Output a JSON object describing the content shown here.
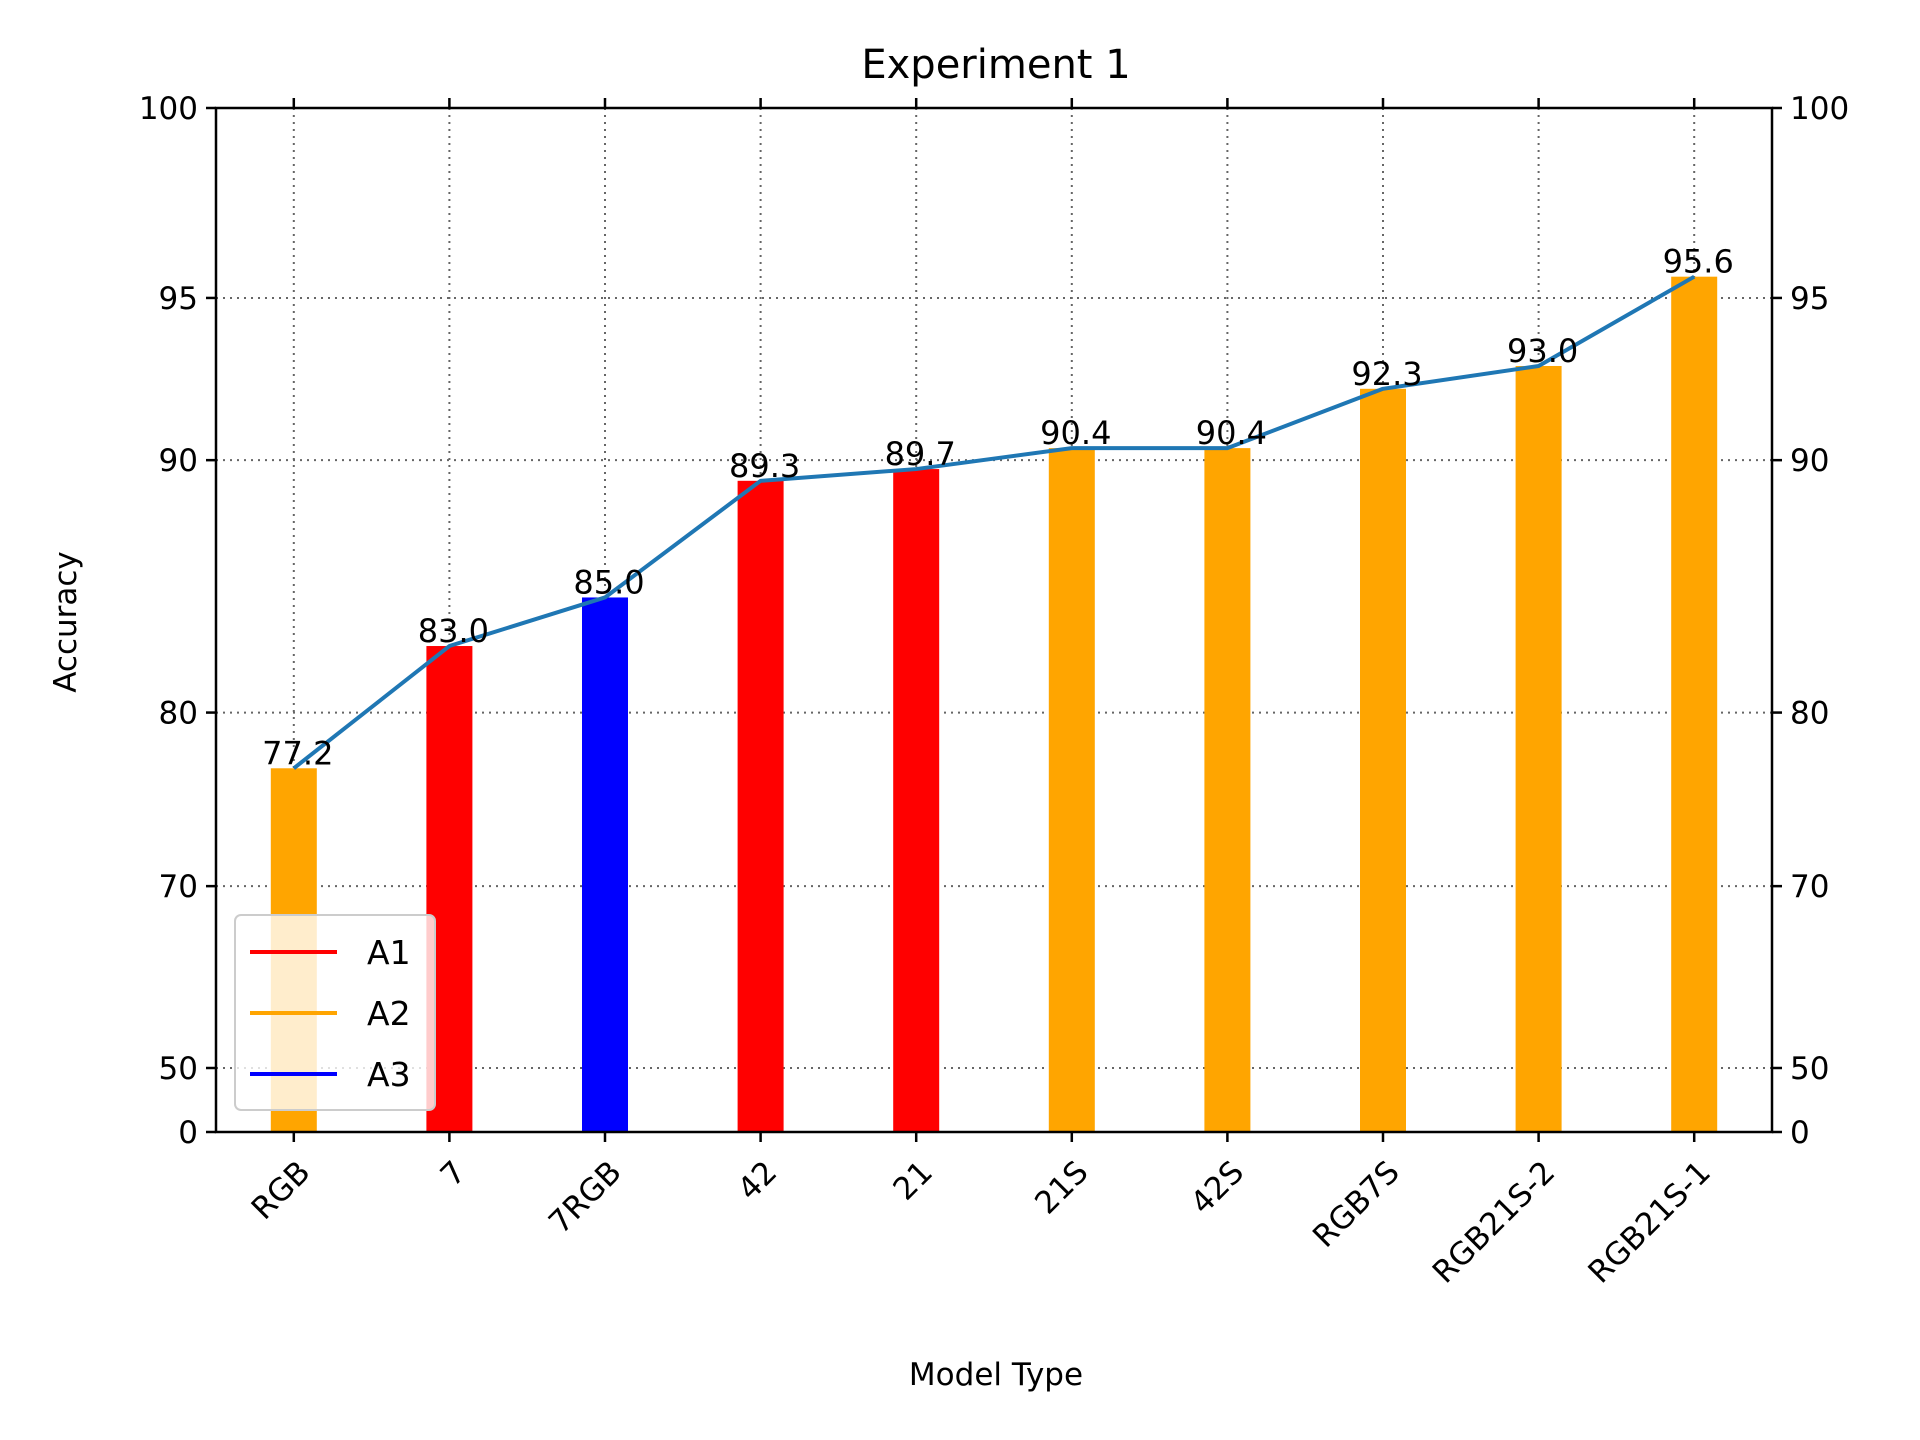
{
  "chart_data": {
    "type": "bar",
    "title": "Experiment 1",
    "xlabel": "Model Type",
    "ylabel": "Accuracy",
    "categories": [
      "RGB",
      "7",
      "7RGB",
      "42",
      "21",
      "21S",
      "42S",
      "RGB7S",
      "RGB21S-2",
      "RGB21S-1"
    ],
    "values": [
      77.2,
      83.0,
      85.0,
      89.3,
      89.7,
      90.4,
      90.4,
      92.3,
      93.0,
      95.6
    ],
    "value_labels": [
      "77.2",
      "83.0",
      "85.0",
      "89.3",
      "89.7",
      "90.4",
      "90.4",
      "92.3",
      "93.0",
      "95.6"
    ],
    "bar_groups": [
      "A2",
      "A1",
      "A3",
      "A1",
      "A1",
      "A2",
      "A2",
      "A2",
      "A2",
      "A2"
    ],
    "line_values": [
      77.2,
      83.0,
      85.0,
      89.3,
      89.7,
      90.4,
      90.4,
      92.3,
      93.0,
      95.6
    ],
    "y_ticks": [
      0,
      50,
      70,
      80,
      90,
      95,
      100
    ],
    "y_tick_labels": [
      "0",
      "50",
      "70",
      "80",
      "90",
      "95",
      "100"
    ],
    "ylim": [
      0,
      100
    ],
    "y_scale": "nonlinear (power-stretched toward high accuracy)",
    "grid": true,
    "secondary_y_axis": "right, same ticks",
    "legend": {
      "position": "lower-left",
      "entries": [
        {
          "label": "A1",
          "color": "#ff0000"
        },
        {
          "label": "A2",
          "color": "#ffa500"
        },
        {
          "label": "A3",
          "color": "#0000ff"
        }
      ]
    },
    "colors": {
      "A1": "#ff0000",
      "A2": "#ffa500",
      "A3": "#0000ff",
      "line": "#1f77b4"
    }
  }
}
